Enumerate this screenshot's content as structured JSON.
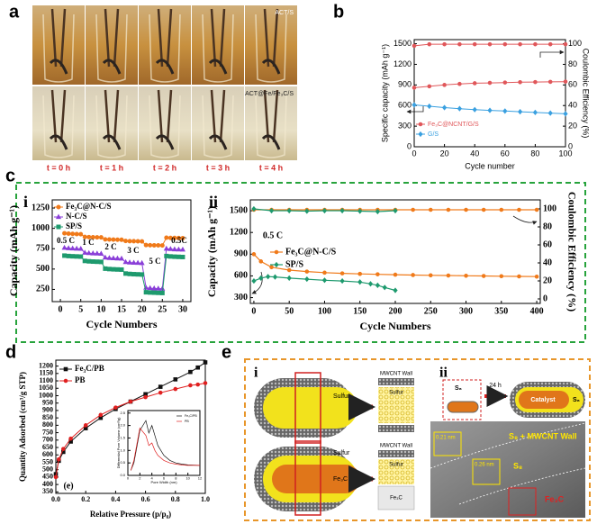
{
  "panels": {
    "a": {
      "label": "a",
      "top_label": "ACT/S",
      "bottom_label": "ACT@Fe/Fe₃C/S",
      "times": [
        "t = 0 h",
        "t = 1 h",
        "t = 2 h",
        "t = 3 h",
        "t = 4 h"
      ]
    },
    "b": {
      "label": "b",
      "chart": {
        "type": "line",
        "xlabel": "Cycle number",
        "ylabel": "Specific capacity (mAh g⁻¹)",
        "y2label": "Coulombic Efficiency (%)",
        "xlim": [
          0,
          100
        ],
        "ylim": [
          0,
          1560
        ],
        "y2lim": [
          0,
          104
        ],
        "xticks": [
          0,
          20,
          40,
          60,
          80,
          100
        ],
        "yticks": [
          0,
          300,
          600,
          900,
          1200,
          1500
        ],
        "y2ticks": [
          0,
          20,
          40,
          60,
          80,
          100
        ],
        "legend": "lower left",
        "series": [
          {
            "name": "Fe₃C@NCNT/G/S",
            "color": "#e0575a",
            "marker": "circle",
            "x": [
              0,
              10,
              20,
              30,
              40,
              50,
              60,
              70,
              80,
              90,
              100
            ],
            "values": [
              860,
              880,
              900,
              915,
              925,
              930,
              935,
              940,
              942,
              945,
              948
            ]
          },
          {
            "name": "G/S",
            "color": "#3aa0e0",
            "marker": "diamond",
            "x": [
              0,
              10,
              20,
              30,
              40,
              50,
              60,
              70,
              80,
              90,
              100
            ],
            "values": [
              610,
              590,
              570,
              555,
              540,
              530,
              520,
              510,
              500,
              490,
              480
            ]
          },
          {
            "color": "#e0575a",
            "marker": "circle",
            "axis": "y2",
            "x": [
              0,
              10,
              20,
              30,
              40,
              50,
              60,
              70,
              80,
              90,
              100
            ],
            "values": [
              98,
              99.5,
              99.5,
              99.5,
              99.5,
              99.5,
              99.5,
              99.5,
              99.5,
              99.5,
              99.5
            ]
          }
        ]
      }
    },
    "c": {
      "label": "c",
      "i": {
        "label": "i",
        "chart": {
          "type": "line",
          "xlabel": "Cycle Numbers",
          "ylabel": "Capacity (mAh g⁻¹)",
          "xlim": [
            -2,
            32
          ],
          "ylim": [
            100,
            1350
          ],
          "xticks": [
            0,
            5,
            10,
            15,
            20,
            25,
            30
          ],
          "yticks": [
            250,
            500,
            750,
            1000,
            1250
          ],
          "legend": "upper left",
          "annotations": [
            "0.5 C",
            "1 C",
            "2 C",
            "3 C",
            "5 C",
            "0.5C"
          ],
          "x": [
            1,
            2,
            3,
            4,
            5,
            6,
            7,
            8,
            9,
            10,
            11,
            12,
            13,
            14,
            15,
            16,
            17,
            18,
            19,
            20,
            21,
            22,
            23,
            24,
            25,
            26,
            27,
            28,
            29,
            30
          ],
          "series": [
            {
              "name": "Fe₃C@N-C/S",
              "color": "#f07a1a",
              "marker": "circle",
              "values": [
                940,
                935,
                932,
                930,
                928,
                895,
                893,
                891,
                890,
                889,
                865,
                863,
                862,
                861,
                860,
                845,
                843,
                842,
                841,
                840,
                795,
                793,
                792,
                791,
                790,
                885,
                883,
                882,
                881,
                880
              ]
            },
            {
              "name": "N-C/S",
              "color": "#8a3fd8",
              "marker": "triangle",
              "values": [
                760,
                755,
                752,
                750,
                748,
                700,
                695,
                692,
                690,
                688,
                640,
                635,
                632,
                630,
                628,
                585,
                580,
                577,
                575,
                573,
                270,
                265,
                262,
                260,
                258,
                750,
                745,
                742,
                740,
                738
              ]
            },
            {
              "name": "SP/S",
              "color": "#1e9a6e",
              "marker": "square",
              "values": [
                665,
                660,
                657,
                655,
                653,
                600,
                595,
                592,
                590,
                588,
                505,
                500,
                497,
                495,
                493,
                445,
                440,
                437,
                435,
                433,
                215,
                212,
                210,
                208,
                206,
                660,
                655,
                652,
                650,
                648
              ]
            }
          ]
        }
      },
      "ii": {
        "label": "ii",
        "chart": {
          "type": "line",
          "xlabel": "Cycle Numbers",
          "ylabel": "Capacity (mAh g⁻¹)",
          "y2label": "Coulombic Efficiency (%)",
          "xlim": [
            -5,
            405
          ],
          "ylim": [
            220,
            1650
          ],
          "y2lim": [
            -5,
            110
          ],
          "xticks": [
            0,
            50,
            100,
            150,
            200,
            250,
            300,
            350,
            400
          ],
          "yticks": [
            300,
            600,
            900,
            1200,
            1500
          ],
          "y2ticks": [
            0,
            20,
            40,
            60,
            80,
            100
          ],
          "legend": "center left",
          "annotations": [
            "0.5 C"
          ],
          "series": [
            {
              "name": "Fe₃C@N-C/S",
              "color": "#f07a1a",
              "marker": "circle",
              "x": [
                0,
                10,
                25,
                50,
                75,
                100,
                125,
                150,
                175,
                200,
                225,
                250,
                275,
                300,
                325,
                350,
                375,
                400
              ],
              "values": [
                900,
                800,
                720,
                680,
                660,
                645,
                635,
                628,
                622,
                617,
                612,
                608,
                605,
                602,
                599,
                596,
                593,
                590
              ]
            },
            {
              "name": "SP/S",
              "color": "#1e9a6e",
              "marker": "diamond",
              "x": [
                0,
                10,
                20,
                30,
                50,
                75,
                100,
                125,
                150,
                165,
                175,
                185,
                200
              ],
              "values": [
                530,
                570,
                590,
                585,
                570,
                555,
                540,
                530,
                515,
                490,
                470,
                440,
                400
              ]
            },
            {
              "color": "#f07a1a",
              "marker": "circle",
              "axis": "y2",
              "x": [
                0,
                25,
                50,
                75,
                100,
                125,
                150,
                175,
                200,
                225,
                250,
                275,
                300,
                325,
                350,
                375,
                400
              ],
              "values": [
                99,
                99,
                99,
                99,
                99,
                99,
                99,
                99,
                99,
                99,
                99,
                99,
                99,
                99,
                99,
                99,
                99
              ]
            },
            {
              "color": "#1e9a6e",
              "marker": "diamond",
              "axis": "y2",
              "x": [
                0,
                25,
                50,
                75,
                100,
                125,
                150,
                175,
                200
              ],
              "values": [
                100,
                98,
                98,
                97.5,
                98,
                98,
                97.5,
                97,
                98
              ]
            }
          ]
        }
      }
    },
    "d": {
      "label": "d",
      "chart": {
        "type": "line",
        "xlabel": "Relative Pressure (p/p₀)",
        "ylabel": "Quantity Adsorbed (cm³/g STP)",
        "xlim": [
          0,
          1
        ],
        "ylim": [
          340,
          1240
        ],
        "xticks": [
          {
            "value": 0,
            "label": "0.0"
          },
          0.2,
          0.4,
          0.6,
          0.8,
          {
            "value": 1,
            "label": "1.0"
          }
        ],
        "yticks": [
          350,
          400,
          450,
          500,
          550,
          600,
          650,
          700,
          750,
          800,
          850,
          900,
          950,
          1000,
          1050,
          1100,
          1150,
          1200
        ],
        "legend": "upper left",
        "annotations": [
          "(e)"
        ],
        "series": [
          {
            "name": "Fe₃C/PB",
            "color": "#111111",
            "marker": "square",
            "x": [
              0,
              0.02,
              0.05,
              0.1,
              0.2,
              0.3,
              0.4,
              0.5,
              0.6,
              0.7,
              0.8,
              0.9,
              0.95,
              1
            ],
            "values": [
              470,
              560,
              620,
              690,
              780,
              850,
              910,
              960,
              1010,
              1060,
              1110,
              1160,
              1190,
              1225
            ]
          },
          {
            "name": "PB",
            "color": "#e02020",
            "marker": "circle",
            "x": [
              0,
              0.02,
              0.05,
              0.1,
              0.2,
              0.3,
              0.4,
              0.5,
              0.6,
              0.7,
              0.8,
              0.9,
              0.95,
              1
            ],
            "values": [
              450,
              570,
              640,
              710,
              800,
              870,
              920,
              960,
              990,
              1020,
              1045,
              1070,
              1075,
              1085
            ]
          }
        ]
      },
      "inset": {
        "type": "line",
        "xlabel": "Pore Width (nm)",
        "ylabel": "Differential Pore Volume (cm³/g)",
        "xlim": [
          0,
          12
        ],
        "ylim": [
          0,
          2.6
        ],
        "xticks": [
          0,
          2,
          4,
          6,
          8,
          10,
          12
        ],
        "yticks": [
          {
            "value": 0,
            "label": "0.0"
          },
          0.5,
          {
            "value": 1,
            "label": "1.0"
          },
          1.5,
          {
            "value": 2,
            "label": "2.0"
          },
          2.5
        ],
        "legend": "upper right",
        "series": [
          {
            "name": "Fe₃C/PB",
            "color": "#111111",
            "x": [
              0.5,
              1,
              2,
              3,
              3.5,
              4,
              4.5,
              5,
              6,
              7,
              8,
              9,
              10,
              12
            ],
            "values": [
              0.2,
              0.5,
              1.8,
              2.2,
              1.7,
              2.0,
              1.6,
              1.2,
              0.8,
              0.6,
              0.5,
              0.45,
              0.42,
              0.4
            ]
          },
          {
            "name": "PB",
            "color": "#e02020",
            "x": [
              0.5,
              1,
              2,
              3,
              3.5,
              4,
              4.5,
              5,
              6,
              7,
              8,
              9,
              10,
              12
            ],
            "values": [
              0.2,
              0.6,
              1.9,
              1.6,
              1.2,
              1.3,
              1.0,
              0.8,
              0.6,
              0.5,
              0.45,
              0.42,
              0.4,
              0.4
            ]
          }
        ]
      }
    },
    "e": {
      "label": "e",
      "i": "i",
      "ii": "ii",
      "top": {
        "sulfur": "Sulfur",
        "wall": "MWCNT Wall",
        "box_sulfur": "Sulfur"
      },
      "bottom": {
        "sulfur": "Sulfur",
        "fe3c": "Fe₃C",
        "wall": "MWCNT Wall",
        "box_sulfur": "Sulfur",
        "box_fe3c": "Fe₃C"
      },
      "scheme": {
        "s8_left": "S₈",
        "time": "24 h",
        "catalyst": "Catalyst",
        "s8_right": "S₈"
      },
      "tem": {
        "wall": "S₈ + MWCNT Wall",
        "s8": "S₈",
        "fe3c": "Fe₃C",
        "d1": "0.21 nm",
        "d2": "0.26 nm"
      }
    }
  }
}
